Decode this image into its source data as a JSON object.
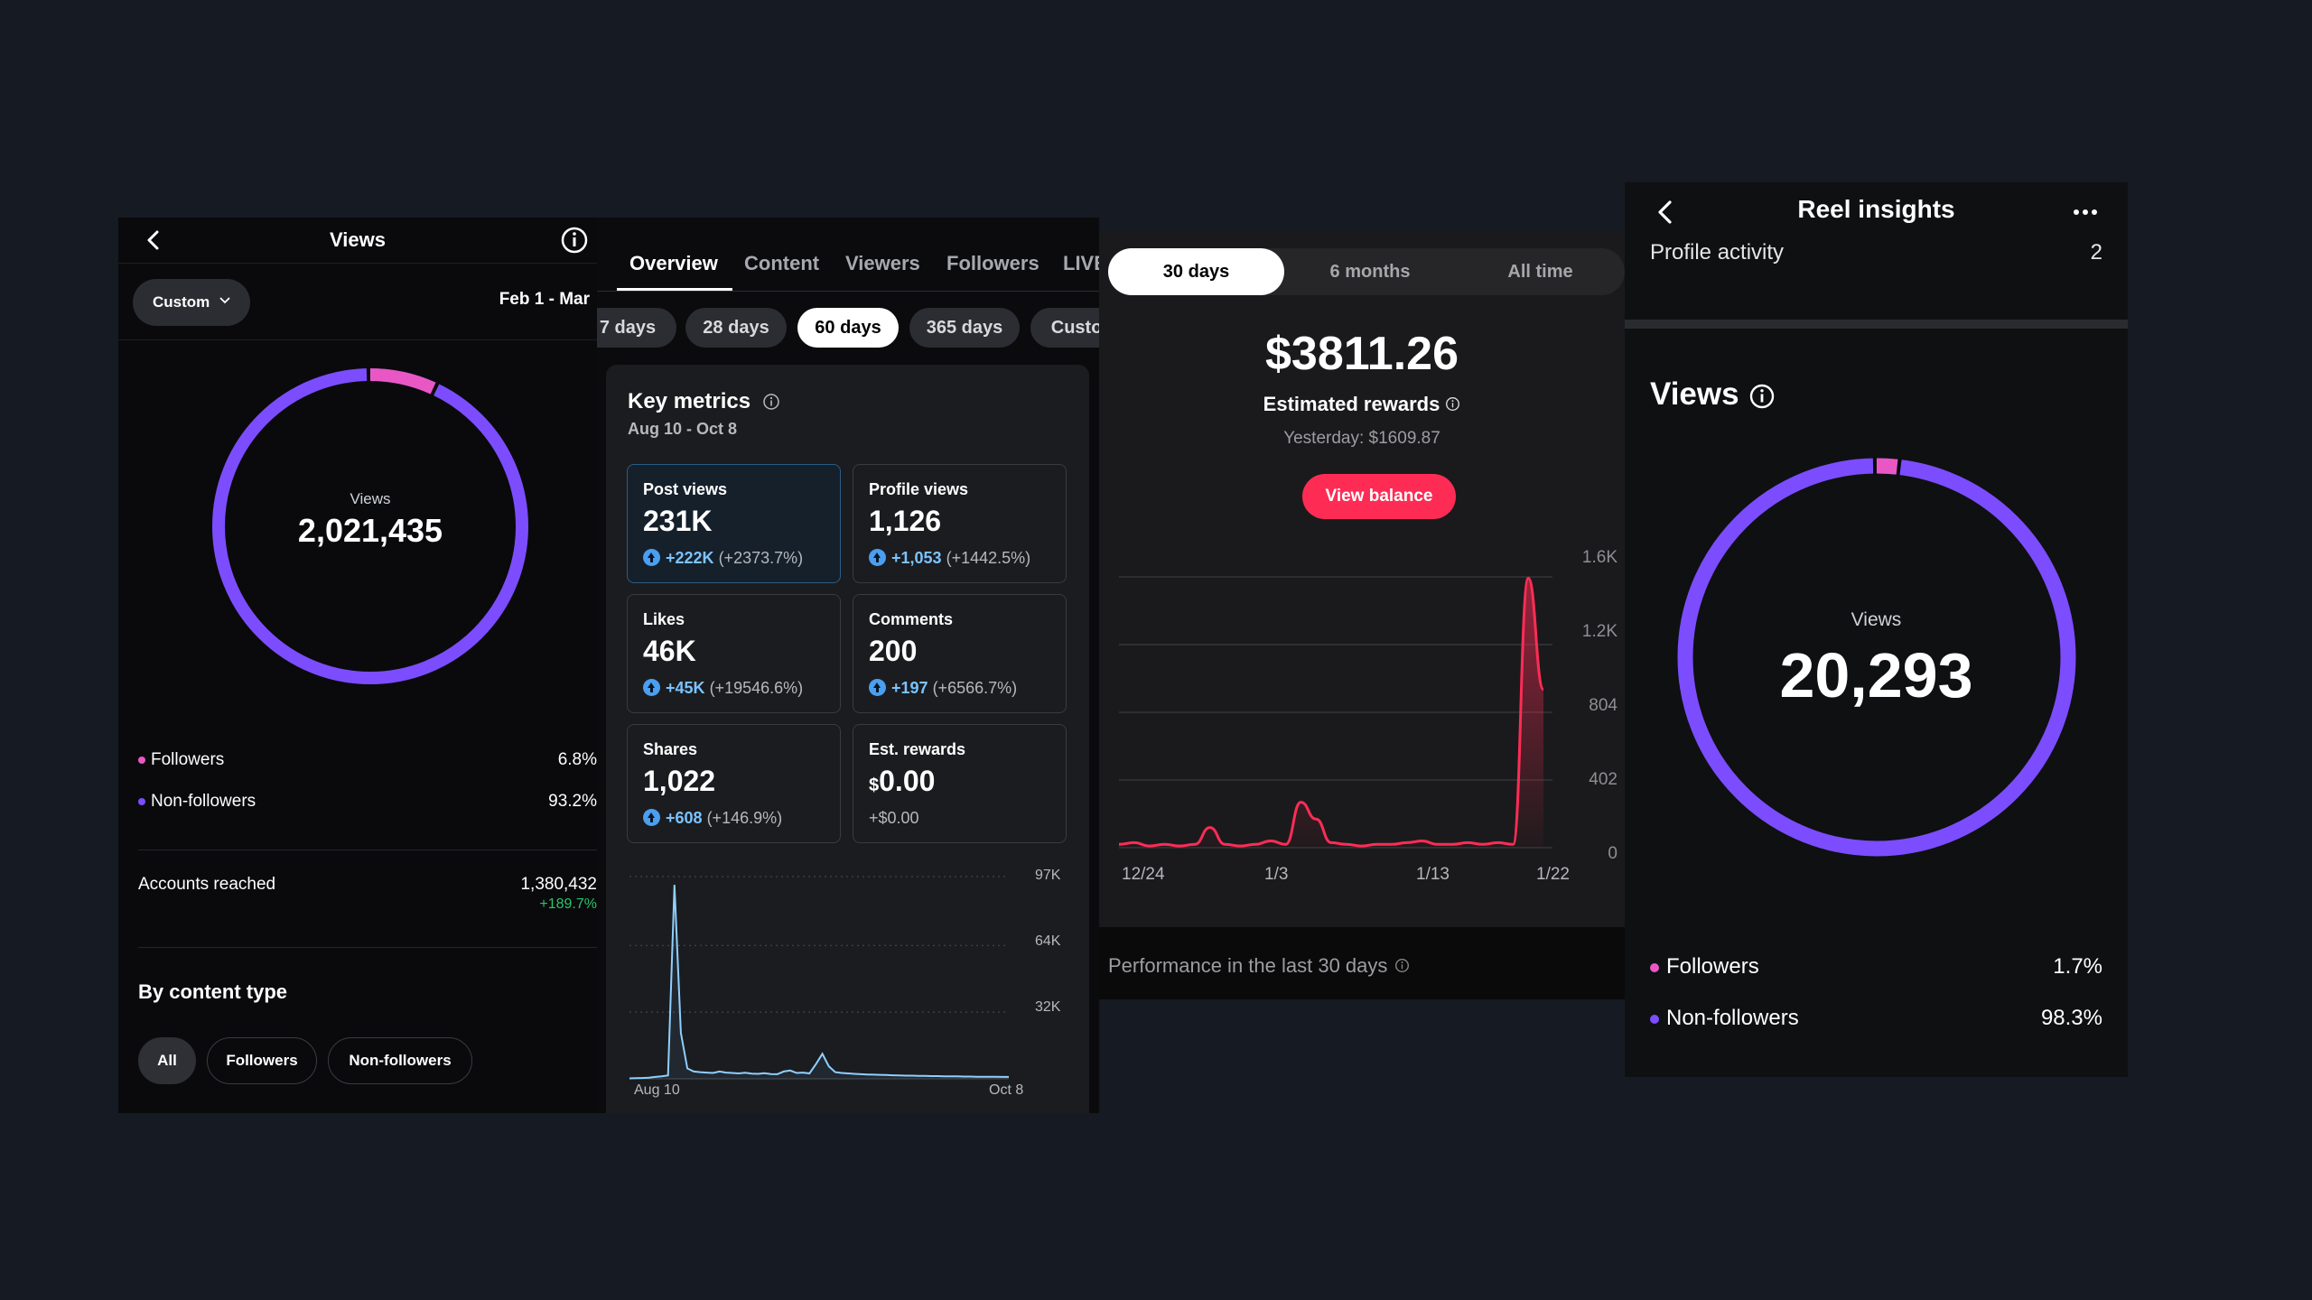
{
  "panel1": {
    "title": "Views",
    "filter_label": "Custom",
    "date_range": "Feb 1 - Mar",
    "ring": {
      "label": "Views",
      "value": "2,021,435",
      "followers_fraction": 0.068
    },
    "legend": [
      {
        "label": "Followers",
        "value": "6.8%",
        "color": "#e957c5"
      },
      {
        "label": "Non-followers",
        "value": "93.2%",
        "color": "#7c4dff"
      }
    ],
    "accounts_reached": {
      "label": "Accounts reached",
      "value": "1,380,432",
      "delta": "+189.7%"
    },
    "by_content_type": {
      "title": "By content type",
      "chips": [
        "All",
        "Followers",
        "Non-followers"
      ]
    }
  },
  "panel2": {
    "tabs": [
      "Overview",
      "Content",
      "Viewers",
      "Followers",
      "LIVE"
    ],
    "period_pills": [
      "7 days",
      "28 days",
      "60 days",
      "365 days",
      "Custom"
    ],
    "key_metrics": {
      "title": "Key metrics",
      "range": "Aug 10 - Oct 8",
      "cards": [
        {
          "label": "Post views",
          "value": "231K",
          "delta": "+222K",
          "pct": "(+2373.7%)"
        },
        {
          "label": "Profile views",
          "value": "1,126",
          "delta": "+1,053",
          "pct": "(+1442.5%)"
        },
        {
          "label": "Likes",
          "value": "46K",
          "delta": "+45K",
          "pct": "(+19546.6%)"
        },
        {
          "label": "Comments",
          "value": "200",
          "delta": "+197",
          "pct": "(+6566.7%)"
        },
        {
          "label": "Shares",
          "value": "1,022",
          "delta": "+608",
          "pct": "(+146.9%)"
        },
        {
          "label": "Est. rewards",
          "currency": "$",
          "value": "0.00",
          "sub": "+$0.00"
        }
      ]
    }
  },
  "panel3": {
    "segments": [
      "30 days",
      "6 months",
      "All time"
    ],
    "amount": "$3811.26",
    "estimated_label": "Estimated rewards",
    "yesterday": "Yesterday: $1609.87",
    "view_balance": "View balance",
    "performance_label": "Performance in the last 30 days"
  },
  "panel4": {
    "title": "Reel insights",
    "profile_activity": {
      "label": "Profile activity",
      "value": "2"
    },
    "views_title": "Views",
    "ring": {
      "label": "Views",
      "value": "20,293",
      "followers_fraction": 0.017
    },
    "legend": [
      {
        "label": "Followers",
        "value": "1.7%",
        "color": "#e957c5"
      },
      {
        "label": "Non-followers",
        "value": "98.3%",
        "color": "#7c4dff"
      }
    ]
  },
  "chart_data": [
    {
      "type": "area",
      "title": "",
      "x_start": "Aug 10",
      "x_end": "Oct 8",
      "x_tick_labels": [
        "Aug 10",
        "Oct 8"
      ],
      "y_tick_labels": [
        "97K",
        "64K",
        "32K"
      ],
      "ylim": [
        0,
        97000
      ],
      "grid": true,
      "series": [
        {
          "values": [
            200,
            300,
            400,
            500,
            900,
            1200,
            1600,
            93000,
            22000,
            5000,
            3500,
            3200,
            3000,
            2800,
            3500,
            3000,
            2800,
            2600,
            2900,
            2500,
            2400,
            2700,
            2300,
            2200,
            3500,
            4000,
            2800,
            3000,
            2600,
            7000,
            12000,
            6000,
            3200,
            2800,
            2600,
            2400,
            2200,
            2100,
            2000,
            1900,
            1800,
            1700,
            1600,
            1500,
            1500,
            1400,
            1400,
            1300,
            1300,
            1200,
            1200,
            1200,
            1100,
            1100,
            1000,
            1000,
            1000,
            1000,
            900,
            900
          ]
        }
      ]
    },
    {
      "type": "area",
      "title": "",
      "x_tick_labels": [
        "12/24",
        "1/3",
        "1/13",
        "1/22"
      ],
      "y_tick_labels": [
        "1.6K",
        "1.2K",
        "804",
        "402",
        "0"
      ],
      "ylim": [
        0,
        1608
      ],
      "grid": true,
      "series": [
        {
          "values": [
            20,
            30,
            10,
            20,
            10,
            20,
            120,
            20,
            10,
            20,
            40,
            20,
            270,
            170,
            30,
            20,
            10,
            20,
            20,
            30,
            40,
            20,
            20,
            30,
            20,
            30,
            20,
            1600,
            940
          ]
        }
      ]
    }
  ]
}
